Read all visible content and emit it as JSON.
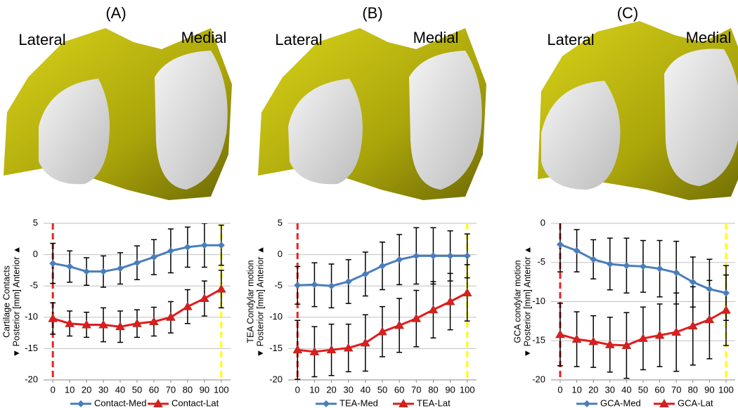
{
  "chart_data": [
    {
      "type": "line",
      "title": "(A)",
      "labels": [
        "Lateral",
        "Medial"
      ],
      "ylabel": [
        "Cartilage Contacts",
        "▼ Posterior   [mm]      Anterior ▲"
      ],
      "x": [
        0,
        10,
        20,
        30,
        40,
        50,
        60,
        70,
        80,
        90,
        100
      ],
      "xlim": [
        -5.5,
        105.5
      ],
      "xticks": [
        0,
        10,
        20,
        30,
        40,
        50,
        60,
        70,
        80,
        90,
        100
      ],
      "ylim": [
        -20,
        5
      ],
      "yticks": [
        -20,
        -15,
        -10,
        -5,
        0,
        5
      ],
      "grid": true,
      "vlines": [
        {
          "x": 0,
          "color": "#e8231f"
        },
        {
          "x": 100,
          "color": "#ffff00"
        }
      ],
      "series": [
        {
          "name": "Contact-Med",
          "color": "#4a7ebb",
          "marker": "diamond",
          "values": [
            -1.4,
            -1.9,
            -2.7,
            -2.7,
            -2.2,
            -1.3,
            -0.4,
            0.6,
            1.2,
            1.5,
            1.5
          ],
          "errors": [
            3.2,
            2.5,
            2.2,
            2.5,
            2.5,
            2.7,
            2.8,
            3.5,
            3.2,
            3.5,
            3.2
          ]
        },
        {
          "name": "Contact-Lat",
          "color": "#e31a1c",
          "marker": "triangle",
          "values": [
            -10.2,
            -11,
            -11.2,
            -11.2,
            -11.5,
            -11,
            -10.7,
            -10,
            -8.3,
            -7,
            -5.5
          ],
          "errors": [
            2.5,
            2,
            2,
            2.7,
            2.5,
            2.2,
            2.3,
            2.5,
            2.7,
            2.8,
            3
          ]
        }
      ]
    },
    {
      "type": "line",
      "title": "(B)",
      "labels": [
        "Lateral",
        "Medial"
      ],
      "ylabel": [
        "TEA Condylar motion",
        "▼ Posterior   [mm]      Anterior ▲"
      ],
      "x": [
        0,
        10,
        20,
        30,
        40,
        50,
        60,
        70,
        80,
        90,
        100
      ],
      "xlim": [
        -5.5,
        105.5
      ],
      "xticks": [
        0,
        10,
        20,
        30,
        40,
        50,
        60,
        70,
        80,
        90,
        100
      ],
      "ylim": [
        -20,
        5
      ],
      "yticks": [
        -20,
        -15,
        -10,
        -5,
        0,
        5
      ],
      "grid": true,
      "vlines": [
        {
          "x": 0,
          "color": "#e8231f"
        },
        {
          "x": 100,
          "color": "#ffff00"
        }
      ],
      "series": [
        {
          "name": "TEA-Med",
          "color": "#4a7ebb",
          "marker": "diamond",
          "values": [
            -4.9,
            -4.8,
            -5,
            -4.3,
            -3.1,
            -1.8,
            -0.8,
            -0.2,
            -0.2,
            -0.2,
            -0.2
          ],
          "errors": [
            3,
            3.5,
            3.5,
            3.5,
            3.5,
            3.8,
            4,
            4.5,
            4.5,
            4,
            3.5
          ]
        },
        {
          "name": "TEA-Lat",
          "color": "#e31a1c",
          "marker": "triangle",
          "values": [
            -15.2,
            -15.5,
            -15.2,
            -14.9,
            -14.1,
            -12.3,
            -11.3,
            -10.2,
            -8.8,
            -7.5,
            -6.1
          ],
          "errors": [
            4.7,
            4,
            4.1,
            3.8,
            4.5,
            4,
            4.3,
            4.5,
            4.5,
            4.5,
            4.5
          ]
        }
      ]
    },
    {
      "type": "line",
      "title": "(C)",
      "labels": [
        "Lateral",
        "Medial"
      ],
      "ylabel": [
        "GCA condylar motion",
        "▼ Posterior   [mm]      Anterior ▲"
      ],
      "x": [
        0,
        10,
        20,
        30,
        40,
        50,
        60,
        70,
        80,
        90,
        100
      ],
      "xlim": [
        -5.5,
        105.5
      ],
      "xticks": [
        0,
        10,
        20,
        30,
        40,
        50,
        60,
        70,
        80,
        90,
        100
      ],
      "ylim": [
        -20,
        0
      ],
      "yticks": [
        -20,
        -15,
        -10,
        -5,
        0
      ],
      "grid": true,
      "vlines": [
        {
          "x": 0,
          "color": "#e8231f"
        },
        {
          "x": 100,
          "color": "#ffff00"
        }
      ],
      "series": [
        {
          "name": "GCA-Med",
          "color": "#4a7ebb",
          "marker": "diamond",
          "values": [
            -2.7,
            -3.5,
            -4.6,
            -5.2,
            -5.4,
            -5.5,
            -5.8,
            -6.3,
            -7.5,
            -8.4,
            -8.9
          ],
          "errors": [
            3.5,
            2.7,
            2.5,
            3.3,
            3.5,
            3.3,
            3.6,
            4,
            3.2,
            3.8,
            3.5
          ]
        },
        {
          "name": "GCA-Lat",
          "color": "#e31a1c",
          "marker": "triangle",
          "values": [
            -14.2,
            -14.8,
            -15.1,
            -15.5,
            -15.6,
            -14.7,
            -14.3,
            -13.9,
            -13.1,
            -12.3,
            -11.1
          ],
          "errors": [
            4,
            3.5,
            3.3,
            3.5,
            4.2,
            4,
            4,
            5,
            5,
            5,
            4.5
          ]
        }
      ]
    }
  ]
}
